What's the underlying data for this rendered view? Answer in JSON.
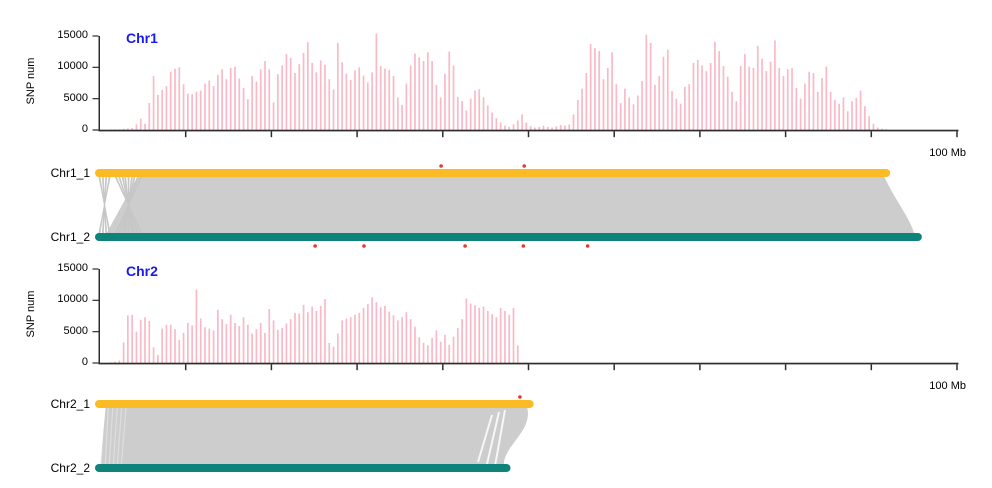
{
  "colors": {
    "snp_bar": "#f9b9c6",
    "hap1_bar": "#fbbb25",
    "hap2_bar": "#0e837b",
    "ribbon": "#cdcdcd",
    "panel_title": "#1a1aee",
    "variant_dot": "#e23b2e",
    "axis": "#2e2e2e",
    "text": "#000000"
  },
  "panels": [
    {
      "title": "Chr1",
      "ylabel": "SNP num",
      "yticks": [
        "15000",
        "10000",
        "5000",
        "0"
      ],
      "xmax_label": "100 Mb",
      "tracks": [
        {
          "label": "Chr1_1",
          "length_mb": 91.5,
          "color_key": "hap1_bar"
        },
        {
          "label": "Chr1_2",
          "length_mb": 95.2,
          "color_key": "hap2_bar"
        }
      ],
      "markers": {
        "above_mb": [
          39.8,
          49.5
        ],
        "below_mb": [
          25.1,
          30.8,
          42.6,
          49.4,
          56.9
        ]
      }
    },
    {
      "title": "Chr2",
      "ylabel": "SNP num",
      "yticks": [
        "15000",
        "10000",
        "5000",
        "0"
      ],
      "xmax_label": "100 Mb",
      "tracks": [
        {
          "label": "Chr2_1",
          "length_mb": 49.9,
          "color_key": "hap1_bar"
        },
        {
          "label": "Chr2_2",
          "length_mb": 47.2,
          "color_key": "hap2_bar"
        }
      ],
      "markers": {
        "above_mb": [
          49.0
        ],
        "below_mb": []
      }
    }
  ],
  "chart_data": [
    {
      "type": "bar",
      "title": "Chr1",
      "xlabel": "100 Mb",
      "ylabel": "SNP num",
      "ylim": [
        0,
        15000
      ],
      "x_axis_mb": [
        0,
        100
      ],
      "x_tick_step_mb": 10,
      "bin_size_mb": 0.5,
      "bin_start_mb": 0,
      "values": [
        0,
        0,
        80,
        120,
        100,
        180,
        250,
        300,
        900,
        1800,
        1000,
        4300,
        8600,
        5600,
        6400,
        7000,
        9300,
        9800,
        10000,
        7300,
        5800,
        5700,
        6100,
        6300,
        7400,
        7900,
        7000,
        8800,
        9700,
        8100,
        9900,
        10100,
        8200,
        6700,
        4900,
        8600,
        7700,
        9700,
        11000,
        9700,
        4400,
        8900,
        10300,
        12100,
        11500,
        9100,
        10500,
        12300,
        14000,
        10700,
        9200,
        11100,
        10400,
        8100,
        6500,
        13900,
        10800,
        9000,
        8000,
        9500,
        10000,
        8700,
        7600,
        9200,
        15400,
        10200,
        9800,
        9600,
        8600,
        5200,
        4000,
        7400,
        10300,
        12200,
        11600,
        11000,
        12400,
        11000,
        7200,
        5200,
        9000,
        12500,
        10300,
        5300,
        4600,
        3100,
        5000,
        6300,
        6500,
        5200,
        3900,
        2800,
        1900,
        1200,
        700,
        500,
        900,
        1500,
        2500,
        1200,
        600,
        400,
        500,
        700,
        500,
        400,
        600,
        800,
        700,
        900,
        2500,
        4800,
        6600,
        9100,
        13700,
        13100,
        12600,
        8100,
        9900,
        12400,
        7300,
        4300,
        6600,
        5200,
        4100,
        5500,
        7800,
        15200,
        13900,
        7200,
        8600,
        11700,
        12800,
        6200,
        5000,
        4200,
        6900,
        7300,
        10700,
        11200,
        10300,
        9400,
        10700,
        14100,
        12600,
        10200,
        8500,
        6100,
        4600,
        10200,
        12100,
        10100,
        9900,
        13400,
        11400,
        9400,
        10900,
        14300,
        9900,
        8600,
        9700,
        9900,
        6700,
        5000,
        7400,
        9300,
        9100,
        6100,
        8300,
        10100,
        6100,
        4800,
        4200,
        5200,
        3000,
        4600,
        5100,
        6300,
        3800,
        2200,
        1000,
        400,
        200,
        120
      ]
    },
    {
      "type": "bar",
      "title": "Chr2",
      "xlabel": "100 Mb",
      "ylabel": "SNP num",
      "ylim": [
        0,
        15000
      ],
      "x_axis_mb": [
        0,
        100
      ],
      "x_tick_step_mb": 10,
      "bin_size_mb": 0.5,
      "bin_start_mb": 0,
      "values": [
        0,
        0,
        100,
        200,
        400,
        3300,
        7600,
        7700,
        5000,
        6900,
        7300,
        6700,
        2500,
        1300,
        5500,
        6100,
        6100,
        5400,
        3700,
        4800,
        6400,
        6000,
        11700,
        7100,
        5700,
        5500,
        5200,
        8500,
        7000,
        6200,
        7700,
        6400,
        5900,
        7300,
        6100,
        4700,
        5400,
        6400,
        4800,
        8600,
        6800,
        5300,
        5600,
        6300,
        7000,
        8000,
        7900,
        9300,
        8100,
        9000,
        8300,
        9100,
        10200,
        3200,
        2600,
        4700,
        6800,
        7100,
        7300,
        7700,
        8000,
        8800,
        9400,
        10500,
        9700,
        8900,
        9100,
        8200,
        7600,
        6800,
        7300,
        8100,
        7000,
        5800,
        4100,
        3200,
        2800,
        4000,
        5200,
        3400,
        4500,
        2900,
        4200,
        5600,
        7000,
        10300,
        9500,
        9200,
        8800,
        9000,
        8300,
        7800,
        7300,
        8800,
        8300,
        7700,
        8800,
        2800
      ]
    }
  ]
}
